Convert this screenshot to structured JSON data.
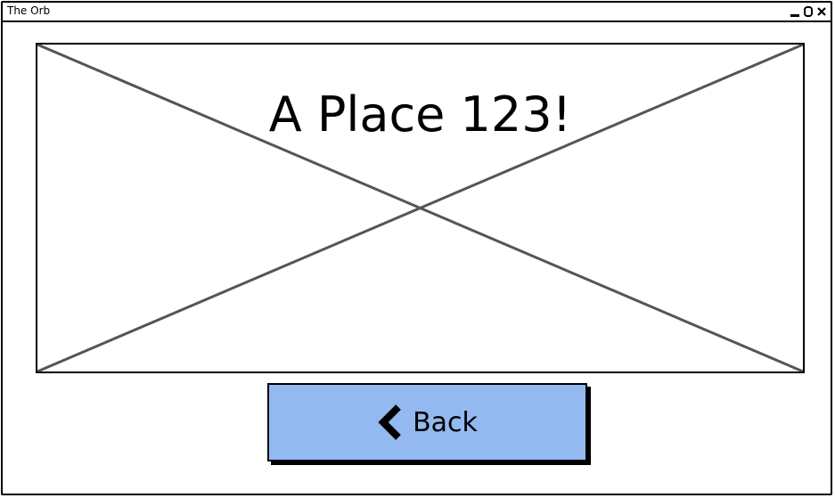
{
  "window": {
    "title": "The Orb",
    "controls": {
      "minimize_icon": "minimize-icon",
      "maximize_icon": "maximize-icon",
      "close_icon": "close-icon"
    }
  },
  "main": {
    "image_placeholder": "image-placeholder",
    "heading": "A Place 123!"
  },
  "back_button": {
    "label": "Back",
    "icon": "chevron-left-icon",
    "color": "#93b9f0"
  }
}
